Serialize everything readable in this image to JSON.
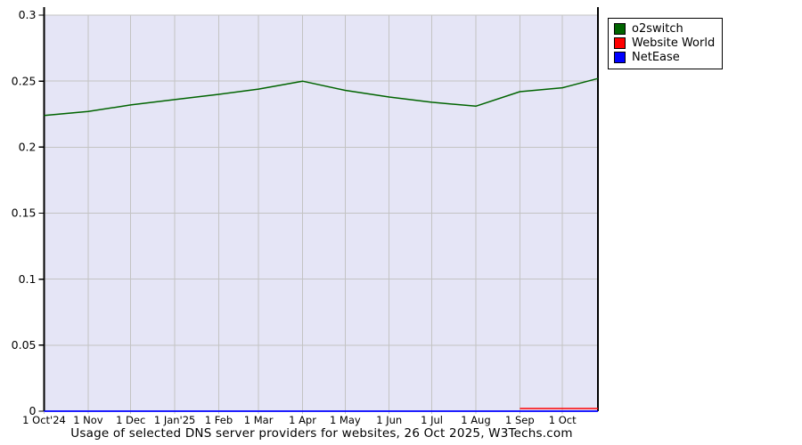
{
  "title": "Usage of selected DNS server providers for websites, 26 Oct 2025, W3Techs.com",
  "legend": {
    "items": [
      {
        "label": "o2switch",
        "color": "#006400"
      },
      {
        "label": "Website World",
        "color": "#ff0000"
      },
      {
        "label": "NetEase",
        "color": "#0000ff"
      }
    ]
  },
  "chart_data": {
    "type": "line",
    "title": "Usage of selected DNS server providers for websites, 26 Oct 2025, W3Techs.com",
    "ylabel": "",
    "xlabel": "",
    "ylim": [
      0,
      0.3
    ],
    "grid": true,
    "legend_position": "outside-top-right",
    "plot_bg_color": "#e5e5f6",
    "grid_color": "#c3c3c3",
    "axis_color": "#000000",
    "y_ticks": [
      {
        "value": 0,
        "label": "0"
      },
      {
        "value": 0.05,
        "label": "0.05"
      },
      {
        "value": 0.1,
        "label": "0.1"
      },
      {
        "value": 0.15,
        "label": "0.15"
      },
      {
        "value": 0.2,
        "label": "0.2"
      },
      {
        "value": 0.25,
        "label": "0.25"
      },
      {
        "value": 0.3,
        "label": "0.3"
      }
    ],
    "x_total_days": 390,
    "x_ticks": [
      {
        "day": 0,
        "label": "1 Oct'24"
      },
      {
        "day": 31,
        "label": "1 Nov"
      },
      {
        "day": 61,
        "label": "1 Dec"
      },
      {
        "day": 92,
        "label": "1 Jan'25"
      },
      {
        "day": 123,
        "label": "1 Feb"
      },
      {
        "day": 151,
        "label": "1 Mar"
      },
      {
        "day": 182,
        "label": "1 Apr"
      },
      {
        "day": 212,
        "label": "1 May"
      },
      {
        "day": 243,
        "label": "1 Jun"
      },
      {
        "day": 273,
        "label": "1 Jul"
      },
      {
        "day": 304,
        "label": "1 Aug"
      },
      {
        "day": 335,
        "label": "1 Sep"
      },
      {
        "day": 365,
        "label": "1 Oct"
      }
    ],
    "series": [
      {
        "name": "o2switch",
        "color": "#006400",
        "stroke_width": 1.5,
        "points": [
          {
            "day": 0,
            "date": "1 Oct'24",
            "value": 0.224
          },
          {
            "day": 31,
            "date": "1 Nov",
            "value": 0.227
          },
          {
            "day": 61,
            "date": "1 Dec",
            "value": 0.232
          },
          {
            "day": 92,
            "date": "1 Jan'25",
            "value": 0.236
          },
          {
            "day": 123,
            "date": "1 Feb",
            "value": 0.24
          },
          {
            "day": 151,
            "date": "1 Mar",
            "value": 0.244
          },
          {
            "day": 182,
            "date": "1 Apr",
            "value": 0.25
          },
          {
            "day": 212,
            "date": "1 May",
            "value": 0.243
          },
          {
            "day": 243,
            "date": "1 Jun",
            "value": 0.238
          },
          {
            "day": 273,
            "date": "1 Jul",
            "value": 0.234
          },
          {
            "day": 304,
            "date": "1 Aug",
            "value": 0.231
          },
          {
            "day": 335,
            "date": "1 Sep",
            "value": 0.242
          },
          {
            "day": 365,
            "date": "1 Oct",
            "value": 0.245
          },
          {
            "day": 390,
            "date": "26 Oct",
            "value": 0.252
          }
        ]
      },
      {
        "name": "Website World",
        "color": "#ff0000",
        "stroke_width": 1.5,
        "points": [
          {
            "day": 335,
            "date": "1 Sep",
            "value": 0.002
          },
          {
            "day": 365,
            "date": "1 Oct",
            "value": 0.002
          },
          {
            "day": 390,
            "date": "26 Oct",
            "value": 0.002
          }
        ]
      },
      {
        "name": "NetEase",
        "color": "#0000ff",
        "stroke_width": 1.8,
        "points": [
          {
            "day": 0,
            "date": "1 Oct'24",
            "value": 0
          },
          {
            "day": 390,
            "date": "26 Oct",
            "value": 0
          }
        ]
      }
    ]
  }
}
